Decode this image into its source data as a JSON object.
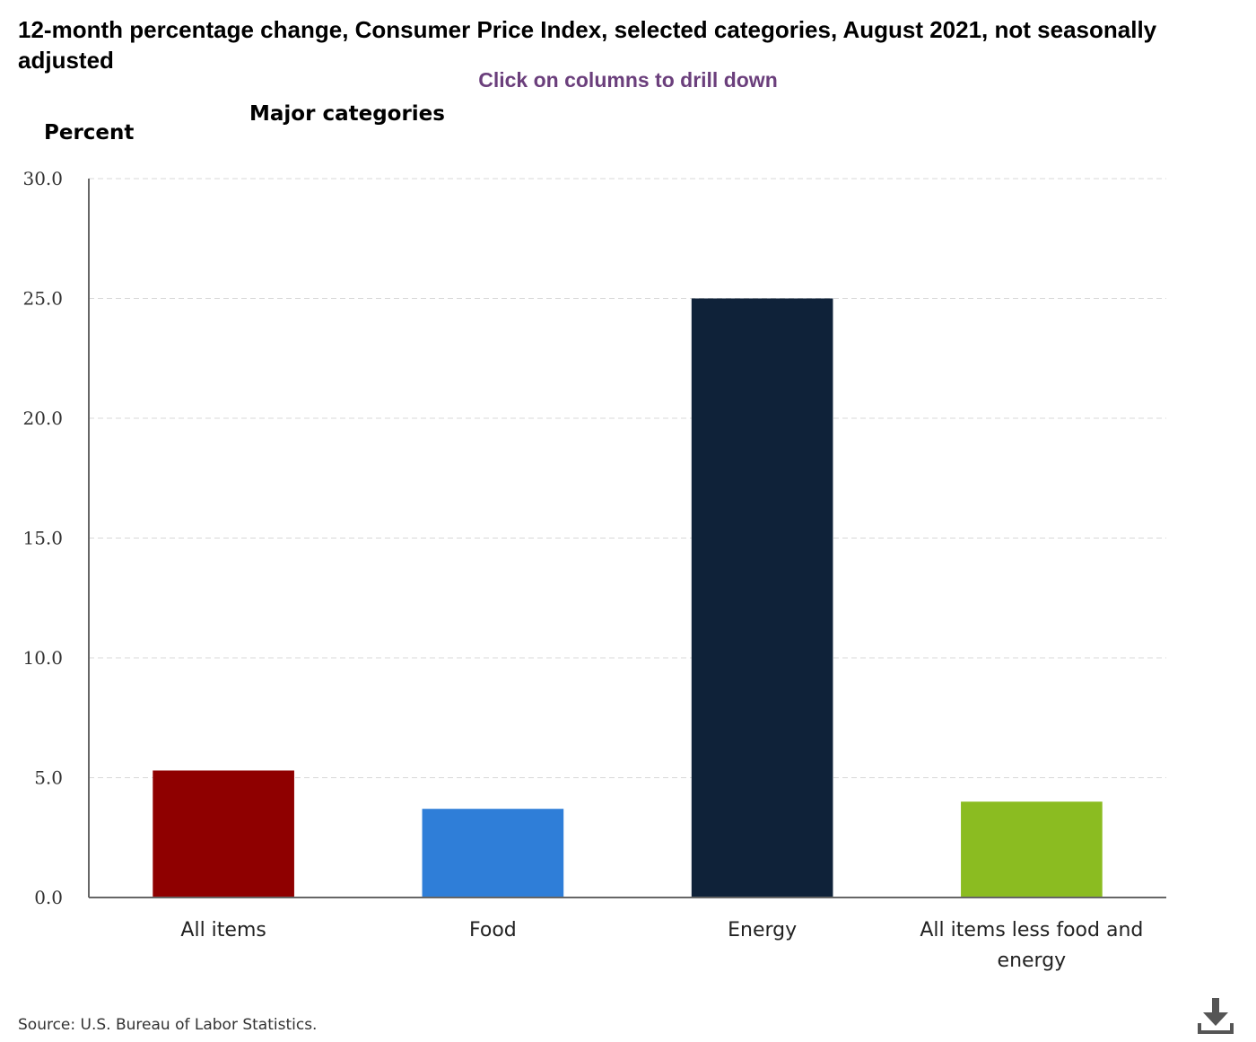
{
  "title": "12-month percentage change, Consumer Price Index, selected categories, August 2021, not seasonally adjusted",
  "instruction": "Click on columns to drill down",
  "source": "Source: U.S. Bureau of Labor Statistics.",
  "download_icon": "download-icon",
  "chart_data": {
    "type": "bar",
    "title": "Major categories",
    "ylabel": "Percent",
    "xlabel": "",
    "categories": [
      "All items",
      "Food",
      "Energy",
      "All items less food and energy"
    ],
    "category_label_lines": [
      [
        "All items"
      ],
      [
        "Food"
      ],
      [
        "Energy"
      ],
      [
        "All items less food and",
        "energy"
      ]
    ],
    "values": [
      5.3,
      3.7,
      25.0,
      4.0
    ],
    "colors": [
      "#8f0000",
      "#2f7ed8",
      "#0f2239",
      "#8bbc21"
    ],
    "ylim": [
      0,
      30
    ],
    "yticks": [
      "0.0",
      "5.0",
      "10.0",
      "15.0",
      "20.0",
      "25.0",
      "30.0"
    ],
    "grid": true
  }
}
